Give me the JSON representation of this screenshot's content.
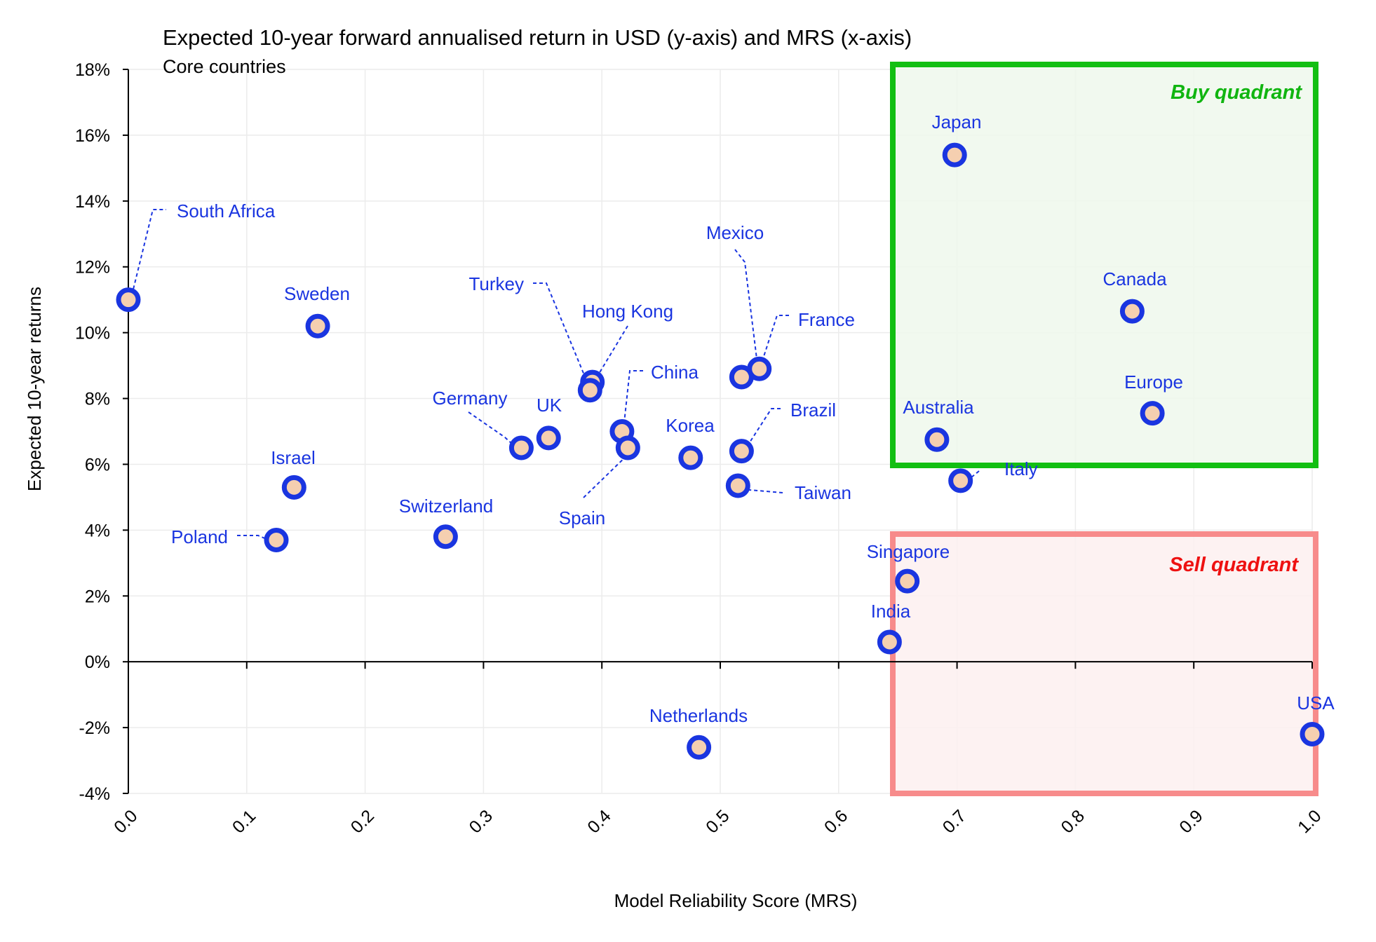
{
  "chart_data": {
    "type": "scatter",
    "title": "Expected 10-year forward annualised return in USD (y-axis) and MRS (x-axis)",
    "subtitle": "Core countries",
    "xlabel": "Model Reliability Score (MRS)",
    "ylabel": "Expected 10-year returns",
    "xlim": [
      0.0,
      1.0
    ],
    "ylim": [
      -4,
      18
    ],
    "x_ticks": [
      0.0,
      0.1,
      0.2,
      0.3,
      0.4,
      0.5,
      0.6,
      0.7,
      0.8,
      0.9,
      1.0
    ],
    "x_tick_labels": [
      "0.0",
      "0.1",
      "0.2",
      "0.3",
      "0.4",
      "0.5",
      "0.6",
      "0.7",
      "0.8",
      "0.9",
      "1.0"
    ],
    "y_ticks": [
      -4,
      -2,
      0,
      2,
      4,
      6,
      8,
      10,
      12,
      14,
      16,
      18
    ],
    "y_tick_labels": [
      "-4%",
      "-2%",
      "0%",
      "2%",
      "4%",
      "6%",
      "8%",
      "10%",
      "12%",
      "14%",
      "16%",
      "18%"
    ],
    "grid": true,
    "point_color": "#1a35e0",
    "point_fill": "#f5cfb0",
    "label_color": "#1a35e0",
    "points": [
      {
        "name": "South Africa",
        "x": 0.0,
        "y": 11.0,
        "leader": true
      },
      {
        "name": "Sweden",
        "x": 0.16,
        "y": 10.2
      },
      {
        "name": "Israel",
        "x": 0.14,
        "y": 5.3
      },
      {
        "name": "Poland",
        "x": 0.125,
        "y": 3.7,
        "leader": true
      },
      {
        "name": "Switzerland",
        "x": 0.268,
        "y": 3.8
      },
      {
        "name": "Germany",
        "x": 0.332,
        "y": 6.5,
        "leader": true
      },
      {
        "name": "UK",
        "x": 0.355,
        "y": 6.8
      },
      {
        "name": "Turkey",
        "x": 0.392,
        "y": 8.5,
        "leader": true
      },
      {
        "name": "Hong Kong",
        "x": 0.39,
        "y": 8.25,
        "leader": true
      },
      {
        "name": "China",
        "x": 0.417,
        "y": 7.0,
        "leader": true
      },
      {
        "name": "Spain",
        "x": 0.422,
        "y": 6.5,
        "leader": true
      },
      {
        "name": "Korea",
        "x": 0.475,
        "y": 6.2
      },
      {
        "name": "Netherlands",
        "x": 0.482,
        "y": -2.6
      },
      {
        "name": "Mexico",
        "x": 0.518,
        "y": 8.65,
        "leader": true
      },
      {
        "name": "France",
        "x": 0.533,
        "y": 8.9,
        "leader": true
      },
      {
        "name": "Brazil",
        "x": 0.518,
        "y": 6.4,
        "leader": true
      },
      {
        "name": "Taiwan",
        "x": 0.515,
        "y": 5.35,
        "leader": true
      },
      {
        "name": "Singapore",
        "x": 0.658,
        "y": 2.45
      },
      {
        "name": "India",
        "x": 0.643,
        "y": 0.6
      },
      {
        "name": "Japan",
        "x": 0.698,
        "y": 15.4
      },
      {
        "name": "Australia",
        "x": 0.683,
        "y": 6.75
      },
      {
        "name": "Italy",
        "x": 0.703,
        "y": 5.5,
        "leader": true
      },
      {
        "name": "Canada",
        "x": 0.848,
        "y": 10.65
      },
      {
        "name": "Europe",
        "x": 0.865,
        "y": 7.55
      },
      {
        "name": "USA",
        "x": 1.0,
        "y": -2.2
      }
    ],
    "quadrants": [
      {
        "label": "Buy quadrant",
        "x_range": [
          0.65,
          1.0
        ],
        "y_range": [
          6,
          18
        ],
        "stroke": "#12bf12",
        "fill": "#eef8ec",
        "text_color": "#10b510"
      },
      {
        "label": "Sell quadrant",
        "x_range": [
          0.65,
          1.0
        ],
        "y_range": [
          -4,
          4
        ],
        "stroke": "#f78b8b",
        "fill": "#fdf0f0",
        "text_color": "#ee1111"
      }
    ]
  }
}
